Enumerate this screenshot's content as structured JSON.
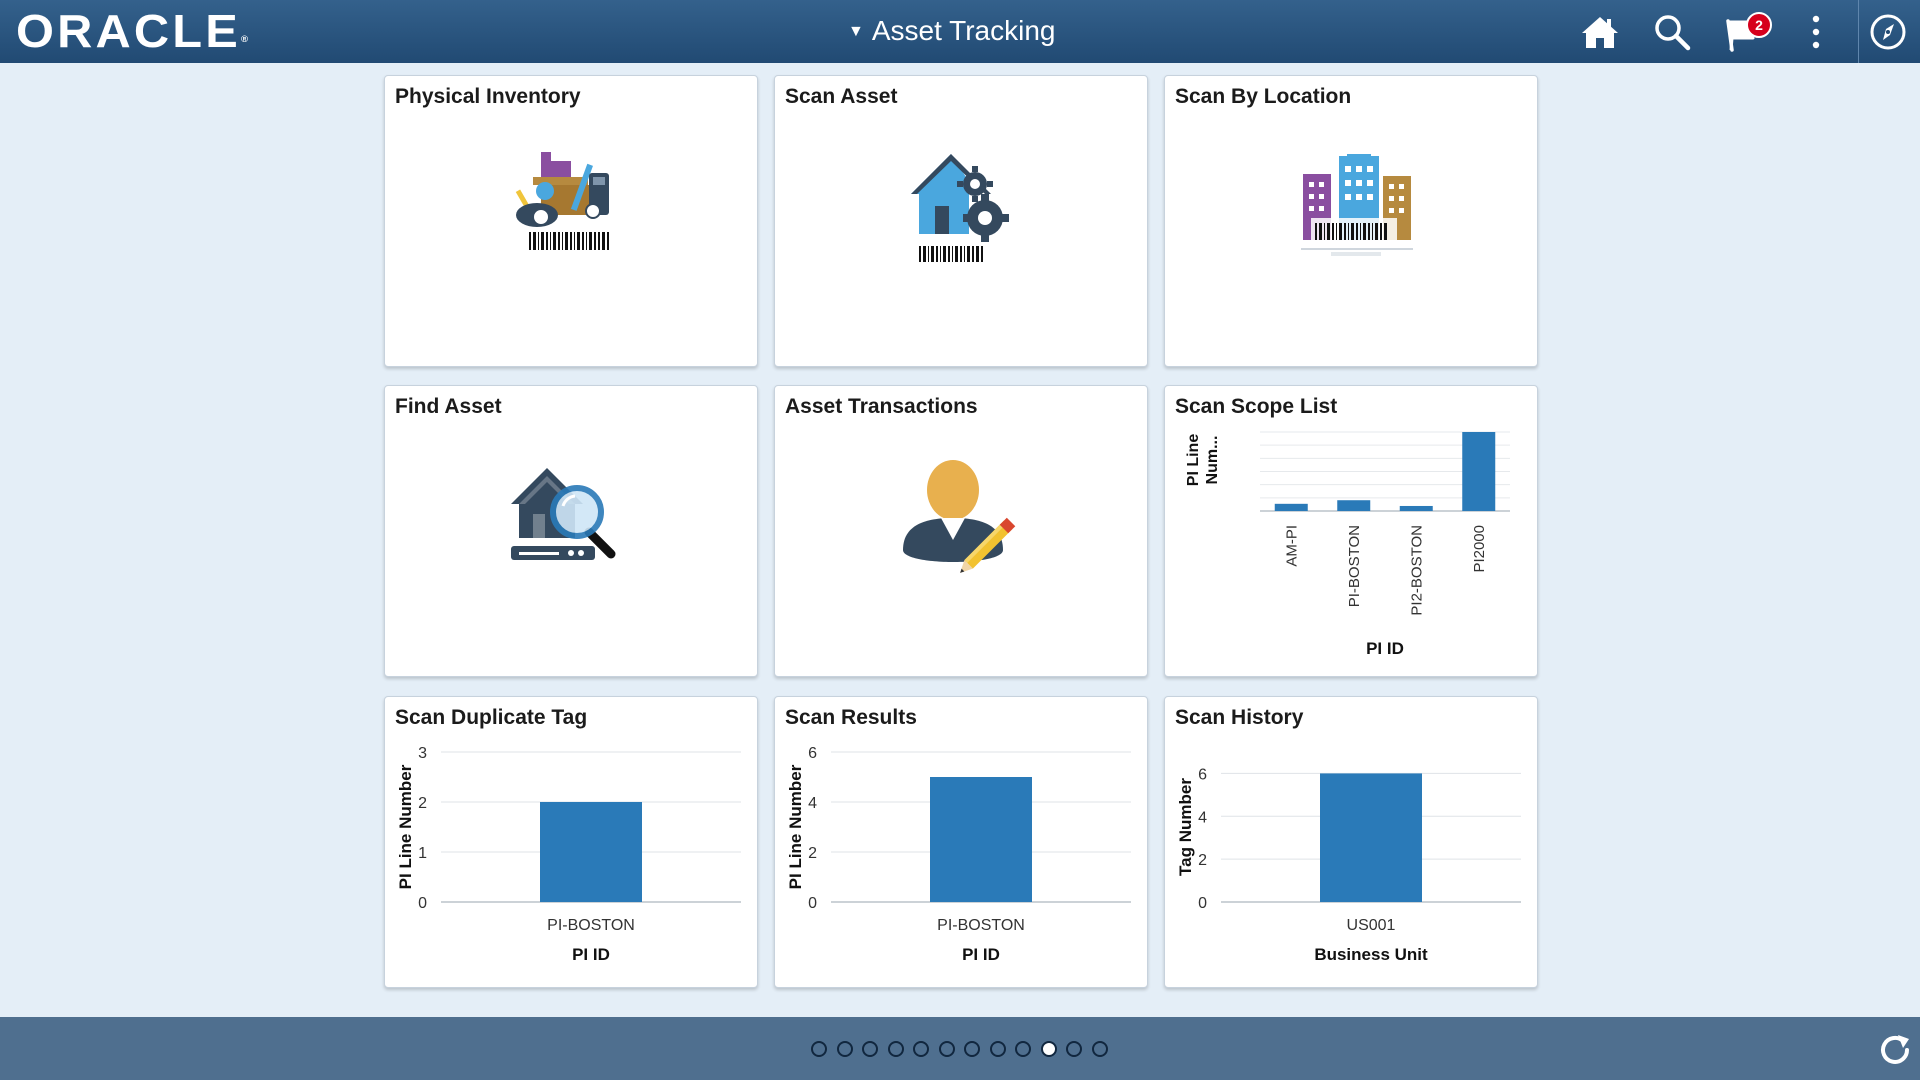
{
  "header": {
    "logo_text": "ORACLE",
    "logo_mark": "®",
    "title": "Asset Tracking",
    "notification_count": "2",
    "icons": [
      "home-icon",
      "search-icon",
      "notifications-flag-icon",
      "actions-menu-icon",
      "navbar-compass-icon"
    ]
  },
  "tiles": [
    {
      "title": "Physical Inventory",
      "icon": "physical-inventory-icon"
    },
    {
      "title": "Scan Asset",
      "icon": "scan-asset-icon"
    },
    {
      "title": "Scan By Location",
      "icon": "scan-by-location-icon"
    },
    {
      "title": "Find Asset",
      "icon": "find-asset-icon"
    },
    {
      "title": "Asset Transactions",
      "icon": "asset-transactions-icon"
    },
    {
      "title": "Scan Scope List"
    },
    {
      "title": "Scan Duplicate Tag"
    },
    {
      "title": "Scan Results"
    },
    {
      "title": "Scan History"
    }
  ],
  "chart_data": [
    {
      "tile": "Scan Scope List",
      "type": "bar",
      "categories": [
        "AM-PI",
        "PI-BOSTON",
        "PI2-BOSTON",
        "PI2000"
      ],
      "values": [
        1,
        1.5,
        0.7,
        11
      ],
      "xlabel": "PI ID",
      "ylabel": "PI Line Num...",
      "ylim": [
        0,
        11
      ],
      "grid": true,
      "color": "#2a7ab8"
    },
    {
      "tile": "Scan Duplicate Tag",
      "type": "bar",
      "categories": [
        "PI-BOSTON"
      ],
      "values": [
        2
      ],
      "xlabel": "PI ID",
      "ylabel": "PI Line Number",
      "yticks": [
        "0",
        "1",
        "2",
        "3"
      ],
      "ylim": [
        0,
        3
      ],
      "grid": true,
      "color": "#2a7ab8"
    },
    {
      "tile": "Scan Results",
      "type": "bar",
      "categories": [
        "PI-BOSTON"
      ],
      "values": [
        5
      ],
      "xlabel": "PI ID",
      "ylabel": "PI Line Number",
      "yticks": [
        "0",
        "2",
        "4",
        "6"
      ],
      "ylim": [
        0,
        6
      ],
      "grid": true,
      "color": "#2a7ab8"
    },
    {
      "tile": "Scan History",
      "type": "bar",
      "categories": [
        "US001"
      ],
      "values": [
        6
      ],
      "xlabel": "Business Unit",
      "ylabel": "Tag Number",
      "yticks": [
        "0",
        "2",
        "4",
        "6"
      ],
      "ylim": [
        0,
        7
      ],
      "grid": true,
      "color": "#2a7ab8"
    }
  ],
  "footer": {
    "page_count": 12,
    "active_page": 10,
    "refresh_icon": "refresh-icon"
  }
}
